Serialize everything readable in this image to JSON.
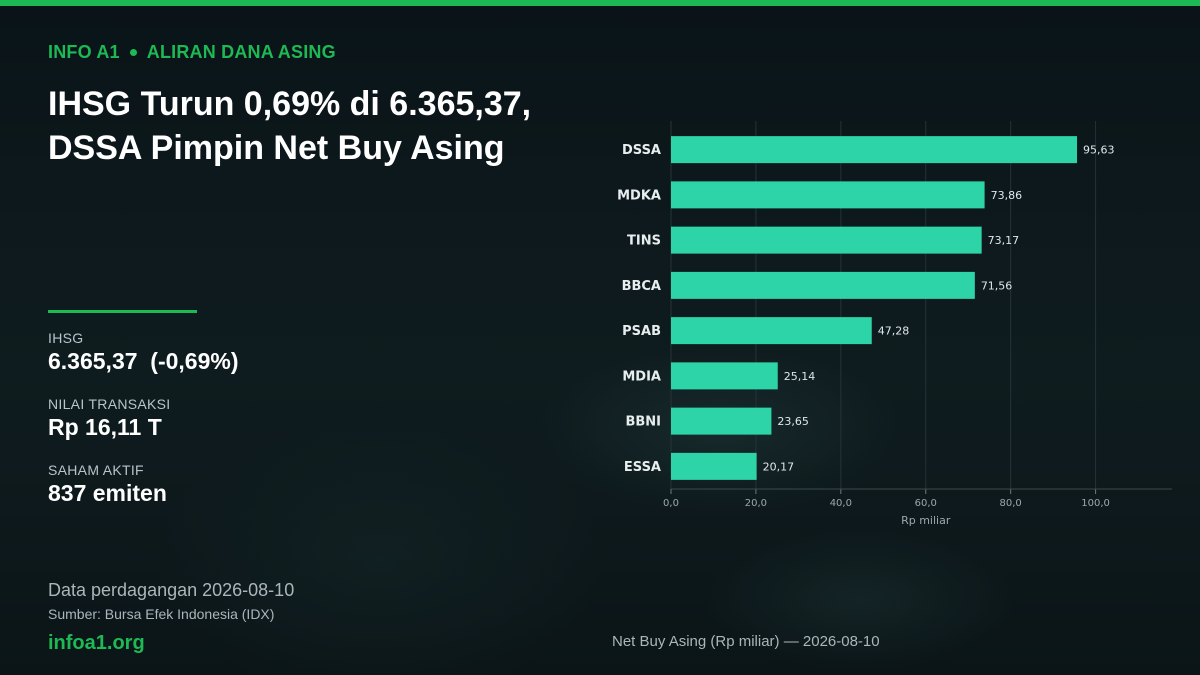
{
  "header": {
    "kicker_left": "INFO A1",
    "kicker_right": "ALIRAN DANA ASING",
    "title": "IHSG Turun 0,69% di 6.365,37, DSSA Pimpin Net Buy Asing"
  },
  "stats": [
    {
      "label": "IHSG",
      "value": "6.365,37  (-0,69%)"
    },
    {
      "label": "NILAI TRANSAKSI",
      "value": "Rp 16,11 T"
    },
    {
      "label": "SAHAM AKTIF",
      "value": "837 emiten"
    }
  ],
  "footer": {
    "date_note": "Data perdagangan 2026-08-10",
    "source": "Sumber: Bursa Efek Indonesia (IDX)",
    "site": "infoa1.org",
    "chart_caption": "Net Buy Asing (Rp miliar) — 2026-08-10"
  },
  "colors": {
    "accent": "#1db954",
    "bar": "#2dd4a8"
  },
  "chart_data": {
    "type": "bar",
    "orientation": "horizontal",
    "categories": [
      "DSSA",
      "MDKA",
      "TINS",
      "BBCA",
      "PSAB",
      "MDIA",
      "BBNI",
      "ESSA"
    ],
    "values": [
      95.63,
      73.86,
      73.17,
      71.56,
      47.28,
      25.14,
      23.65,
      20.17
    ],
    "value_labels": [
      "95,63",
      "73,86",
      "73,17",
      "71,56",
      "47,28",
      "25,14",
      "23,65",
      "20,17"
    ],
    "xlabel": "Rp miliar",
    "xlim": [
      0,
      118
    ],
    "xticks": [
      0,
      20,
      40,
      60,
      80,
      100
    ],
    "xtick_labels": [
      "0,0",
      "20,0",
      "40,0",
      "60,0",
      "80,0",
      "100,0"
    ],
    "grid": true
  }
}
